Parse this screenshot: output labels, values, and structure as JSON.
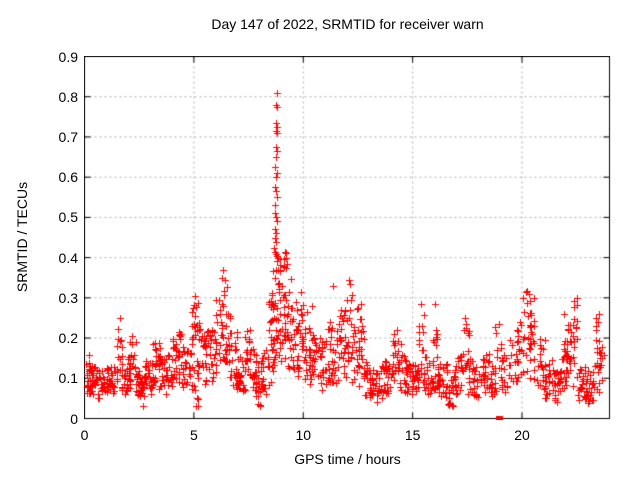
{
  "chart_data": {
    "type": "scatter",
    "title": "Day 147 of 2022, SRMTID for receiver warn",
    "xlabel": "GPS time / hours",
    "ylabel": "SRMTID / TECUs",
    "xlim": [
      0,
      24
    ],
    "ylim": [
      0,
      0.9
    ],
    "xticks": [
      0,
      5,
      10,
      15,
      20
    ],
    "xtick_labels": [
      "0",
      "5",
      "10",
      "15",
      "20"
    ],
    "yticks": [
      0,
      0.1,
      0.2,
      0.3,
      0.4,
      0.5,
      0.6,
      0.7,
      0.8,
      0.9
    ],
    "ytick_labels": [
      "0",
      "0.1",
      "0.2",
      "0.3",
      "0.4",
      "0.5",
      "0.6",
      "0.7",
      "0.8",
      "0.9"
    ],
    "grid": true,
    "legend": "none",
    "colors": {
      "points": "#ff0000",
      "grid": "#b0b0b0",
      "axis": "#000000",
      "text": "#000000",
      "background": "#ffffff"
    },
    "series": [
      {
        "name": "SRMTID",
        "marker": "plus",
        "color": "#ff0000",
        "max_point": [
          8.78,
          0.81
        ],
        "peak_points": [
          [
            8.78,
            0.81
          ],
          [
            8.75,
            0.78
          ],
          [
            8.8,
            0.775
          ],
          [
            8.74,
            0.735
          ],
          [
            8.79,
            0.725
          ],
          [
            8.76,
            0.715
          ],
          [
            8.81,
            0.71
          ],
          [
            8.74,
            0.675
          ],
          [
            8.79,
            0.665
          ],
          [
            8.76,
            0.65
          ],
          [
            8.72,
            0.625
          ],
          [
            8.78,
            0.61
          ],
          [
            8.75,
            0.6
          ],
          [
            8.71,
            0.575
          ],
          [
            8.77,
            0.565
          ],
          [
            8.8,
            0.55
          ],
          [
            8.73,
            0.53
          ],
          [
            8.7,
            0.51
          ],
          [
            8.75,
            0.5
          ],
          [
            8.79,
            0.49
          ],
          [
            8.71,
            0.47
          ],
          [
            8.76,
            0.46
          ],
          [
            8.69,
            0.45
          ],
          [
            8.74,
            0.44
          ],
          [
            8.67,
            0.425
          ],
          [
            8.71,
            0.415
          ],
          [
            8.77,
            0.41
          ],
          [
            8.82,
            0.405
          ],
          [
            8.86,
            0.4
          ],
          [
            9.16,
            0.415
          ],
          [
            9.2,
            0.4
          ],
          [
            9.24,
            0.385
          ],
          [
            6.33,
            0.37
          ],
          [
            6.28,
            0.35
          ],
          [
            6.4,
            0.345
          ],
          [
            5.05,
            0.305
          ],
          [
            1.6,
            0.25
          ],
          [
            2.15,
            0.205
          ],
          [
            9.9,
            0.315
          ],
          [
            10.15,
            0.265
          ],
          [
            10.4,
            0.28
          ],
          [
            11.35,
            0.33
          ],
          [
            12.08,
            0.345
          ],
          [
            12.12,
            0.335
          ],
          [
            12.62,
            0.285
          ],
          [
            14.3,
            0.22
          ],
          [
            15.4,
            0.285
          ],
          [
            16.0,
            0.285
          ],
          [
            17.4,
            0.25
          ],
          [
            18.95,
            0.235
          ],
          [
            20.2,
            0.315
          ],
          [
            20.55,
            0.3
          ],
          [
            21.9,
            0.26
          ],
          [
            22.5,
            0.3
          ],
          [
            23.5,
            0.26
          ]
        ],
        "cloud_bands": [
          [
            0.05,
            0.35,
            0.06,
            0.16,
            26
          ],
          [
            0.3,
            0.9,
            0.05,
            0.13,
            34
          ],
          [
            0.9,
            1.45,
            0.06,
            0.13,
            32
          ],
          [
            1.45,
            1.75,
            0.08,
            0.25,
            16
          ],
          [
            1.7,
            2.1,
            0.06,
            0.15,
            28
          ],
          [
            2.0,
            2.35,
            0.08,
            0.2,
            16
          ],
          [
            2.3,
            2.6,
            0.05,
            0.13,
            20
          ],
          [
            2.55,
            2.75,
            0.03,
            0.1,
            10
          ],
          [
            2.7,
            3.1,
            0.06,
            0.15,
            24
          ],
          [
            3.0,
            3.45,
            0.07,
            0.19,
            24
          ],
          [
            3.4,
            3.9,
            0.06,
            0.16,
            28
          ],
          [
            3.8,
            4.2,
            0.07,
            0.2,
            22
          ],
          [
            4.15,
            4.55,
            0.08,
            0.24,
            20
          ],
          [
            4.5,
            4.9,
            0.07,
            0.17,
            24
          ],
          [
            4.85,
            5.25,
            0.1,
            0.3,
            22
          ],
          [
            5.0,
            5.2,
            0.03,
            0.08,
            6
          ],
          [
            5.2,
            5.6,
            0.08,
            0.24,
            20
          ],
          [
            5.55,
            6.0,
            0.08,
            0.22,
            22
          ],
          [
            5.95,
            6.25,
            0.1,
            0.31,
            16
          ],
          [
            6.2,
            6.5,
            0.14,
            0.37,
            18
          ],
          [
            6.45,
            6.7,
            0.1,
            0.3,
            14
          ],
          [
            6.65,
            7.0,
            0.08,
            0.22,
            18
          ],
          [
            6.95,
            7.35,
            0.06,
            0.16,
            24
          ],
          [
            7.3,
            7.6,
            0.08,
            0.24,
            16
          ],
          [
            7.55,
            7.85,
            0.06,
            0.18,
            18
          ],
          [
            7.8,
            8.1,
            0.03,
            0.13,
            18
          ],
          [
            8.05,
            8.45,
            0.06,
            0.18,
            20
          ],
          [
            8.4,
            8.65,
            0.08,
            0.3,
            18
          ],
          [
            8.55,
            8.95,
            0.12,
            0.42,
            34
          ],
          [
            8.85,
            9.2,
            0.14,
            0.42,
            26
          ],
          [
            9.15,
            9.5,
            0.12,
            0.35,
            22
          ],
          [
            9.45,
            9.75,
            0.1,
            0.3,
            18
          ],
          [
            9.7,
            10.0,
            0.1,
            0.3,
            18
          ],
          [
            9.95,
            10.3,
            0.08,
            0.26,
            18
          ],
          [
            10.25,
            10.7,
            0.08,
            0.22,
            22
          ],
          [
            10.65,
            11.05,
            0.07,
            0.2,
            22
          ],
          [
            11.0,
            11.35,
            0.08,
            0.27,
            18
          ],
          [
            11.3,
            11.65,
            0.08,
            0.22,
            16
          ],
          [
            11.6,
            11.95,
            0.1,
            0.28,
            18
          ],
          [
            11.9,
            12.25,
            0.1,
            0.33,
            20
          ],
          [
            12.2,
            12.55,
            0.08,
            0.28,
            18
          ],
          [
            12.5,
            12.8,
            0.08,
            0.26,
            16
          ],
          [
            12.75,
            13.1,
            0.05,
            0.14,
            20
          ],
          [
            13.05,
            13.6,
            0.04,
            0.12,
            28
          ],
          [
            13.55,
            14.0,
            0.06,
            0.15,
            24
          ],
          [
            13.95,
            14.45,
            0.08,
            0.22,
            22
          ],
          [
            14.4,
            14.9,
            0.06,
            0.16,
            26
          ],
          [
            14.85,
            15.3,
            0.06,
            0.14,
            24
          ],
          [
            15.25,
            15.55,
            0.09,
            0.28,
            16
          ],
          [
            15.5,
            15.95,
            0.06,
            0.16,
            24
          ],
          [
            15.9,
            16.2,
            0.07,
            0.24,
            16
          ],
          [
            16.15,
            16.6,
            0.05,
            0.14,
            24
          ],
          [
            16.55,
            16.85,
            0.03,
            0.1,
            14
          ],
          [
            16.8,
            17.25,
            0.06,
            0.16,
            22
          ],
          [
            17.2,
            17.6,
            0.08,
            0.25,
            18
          ],
          [
            17.55,
            18.05,
            0.05,
            0.15,
            24
          ],
          [
            18.0,
            18.5,
            0.06,
            0.16,
            22
          ],
          [
            18.45,
            18.8,
            0.05,
            0.13,
            16
          ],
          [
            18.75,
            19.1,
            0.07,
            0.24,
            14
          ],
          [
            19.05,
            19.45,
            0.06,
            0.16,
            16
          ],
          [
            19.4,
            19.8,
            0.07,
            0.2,
            14
          ],
          [
            19.75,
            20.1,
            0.09,
            0.25,
            16
          ],
          [
            20.05,
            20.4,
            0.1,
            0.32,
            18
          ],
          [
            20.35,
            20.7,
            0.09,
            0.28,
            16
          ],
          [
            20.65,
            21.05,
            0.07,
            0.22,
            18
          ],
          [
            21.0,
            21.45,
            0.05,
            0.15,
            22
          ],
          [
            21.4,
            21.75,
            0.04,
            0.12,
            18
          ],
          [
            21.7,
            22.1,
            0.06,
            0.2,
            22
          ],
          [
            22.0,
            22.4,
            0.07,
            0.24,
            22
          ],
          [
            22.35,
            22.65,
            0.1,
            0.3,
            14
          ],
          [
            22.55,
            22.95,
            0.04,
            0.13,
            20
          ],
          [
            22.9,
            23.3,
            0.03,
            0.12,
            18
          ],
          [
            23.2,
            23.55,
            0.08,
            0.25,
            16
          ],
          [
            23.45,
            23.75,
            0.06,
            0.18,
            12
          ]
        ],
        "zero_marker_square": {
          "x": 18.94,
          "y": 0.0,
          "marker": "filled-square"
        }
      }
    ]
  }
}
